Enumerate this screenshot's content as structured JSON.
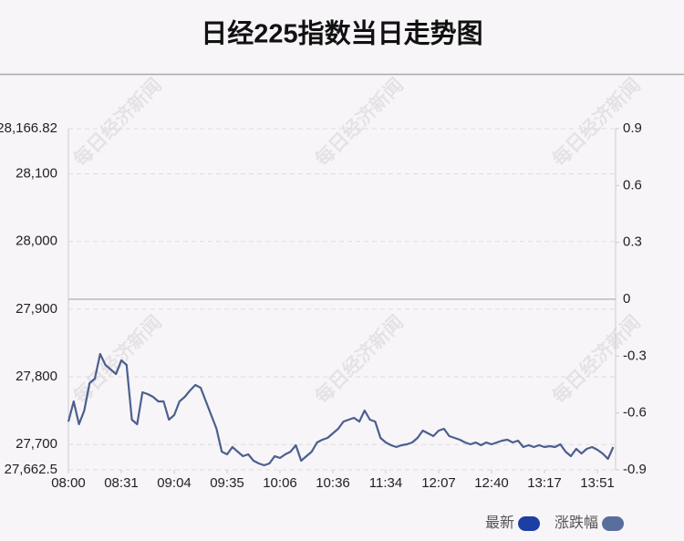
{
  "chart_data": {
    "type": "line",
    "title": "日经225指数当日走势图",
    "watermark": "每日经济新闻",
    "categories": [
      "08:00",
      null,
      null,
      null,
      null,
      null,
      null,
      null,
      null,
      null,
      "08:31",
      null,
      null,
      null,
      null,
      null,
      null,
      null,
      null,
      null,
      "09:04",
      null,
      null,
      null,
      null,
      null,
      null,
      null,
      null,
      null,
      "09:35",
      null,
      null,
      null,
      null,
      null,
      null,
      null,
      null,
      null,
      "10:06",
      null,
      null,
      null,
      null,
      null,
      null,
      null,
      null,
      null,
      "10:36",
      null,
      null,
      null,
      null,
      null,
      null,
      null,
      null,
      null,
      "11:34",
      null,
      null,
      null,
      null,
      null,
      null,
      null,
      null,
      null,
      "12:07",
      null,
      null,
      null,
      null,
      null,
      null,
      null,
      null,
      null,
      "12:40",
      null,
      null,
      null,
      null,
      null,
      null,
      null,
      null,
      null,
      "13:17",
      null,
      null,
      null,
      null,
      null,
      null,
      null,
      null,
      null,
      "13:51",
      null,
      null,
      null
    ],
    "series": [
      {
        "name": "最新",
        "color": "#4b5f8f",
        "values": [
          27733.9,
          27763.6,
          27729.9,
          27750.1,
          27790.6,
          27797.3,
          27833.8,
          27817.6,
          27810.8,
          27804.1,
          27824.3,
          27817.6,
          27736.6,
          27729.9,
          27777.1,
          27774.4,
          27770.4,
          27763.6,
          27763.6,
          27736.6,
          27743.4,
          27763.6,
          27770.4,
          27779.8,
          27787.9,
          27783.9,
          27763.6,
          27743.4,
          27723.2,
          27689.4,
          27685.4,
          27696.2,
          27689.4,
          27682.7,
          27685.4,
          27676.0,
          27671.9,
          27669.2,
          27671.9,
          27682.7,
          27680.0,
          27685.4,
          27689.4,
          27698.9,
          27676.0,
          27682.7,
          27689.4,
          27702.9,
          27707.0,
          27709.7,
          27716.4,
          27723.2,
          27733.9,
          27736.6,
          27739.3,
          27733.9,
          27750.1,
          27736.6,
          27733.9,
          27709.7,
          27702.9,
          27698.9,
          27696.2,
          27698.9,
          27700.2,
          27702.9,
          27709.7,
          27720.5,
          27716.4,
          27712.4,
          27720.5,
          27723.2,
          27712.4,
          27709.7,
          27707.0,
          27702.9,
          27700.2,
          27702.9,
          27698.9,
          27702.9,
          27700.2,
          27702.9,
          27705.6,
          27707.0,
          27702.9,
          27705.6,
          27696.2,
          27698.9,
          27696.2,
          27698.9,
          27696.2,
          27697.5,
          27696.2,
          27700.2,
          27689.4,
          27682.7,
          27693.5,
          27686.7,
          27693.5,
          27696.2,
          27692.1,
          27686.7,
          27678.7,
          27696.2
        ]
      }
    ],
    "legend": [
      {
        "name": "最新",
        "color": "#1c3fa6"
      },
      {
        "name": "涨跌幅",
        "color": "#5a6e9e"
      }
    ],
    "ylim": [
      27662.5,
      28166.82
    ],
    "yticks": [
      {
        "value": 27662.5,
        "label": "27,662.5"
      },
      {
        "value": 27700,
        "label": "27,700"
      },
      {
        "value": 27800,
        "label": "27,800"
      },
      {
        "value": 27900,
        "label": "27,900"
      },
      {
        "value": 28000,
        "label": "28,000"
      },
      {
        "value": 28100,
        "label": "28,100"
      },
      {
        "value": 28166.82,
        "label": "28,166.82"
      }
    ],
    "y2lim": [
      -0.9,
      0.9
    ],
    "y2ticks": [
      0.9,
      0.6,
      0.3,
      0,
      -0.3,
      -0.6,
      -0.9
    ],
    "grid": true
  }
}
